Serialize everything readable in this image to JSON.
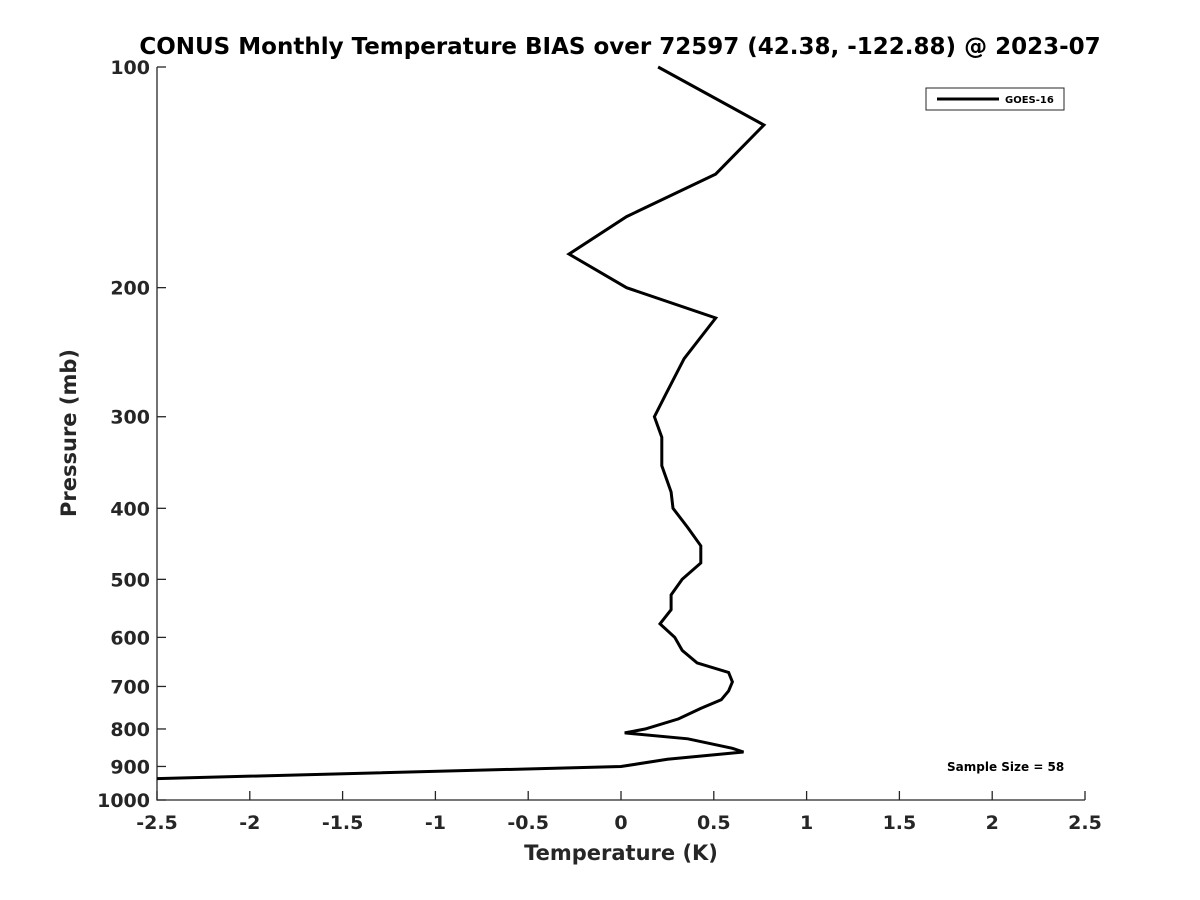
{
  "chart_data": {
    "type": "line",
    "title": "CONUS Monthly Temperature BIAS over 72597 (42.38, -122.88) @ 2023-07",
    "xlabel": "Temperature (K)",
    "ylabel": "Pressure (mb)",
    "xlim": [
      -2.5,
      2.5
    ],
    "ylim": [
      100,
      1000
    ],
    "yscale": "log",
    "yreversed": true,
    "grid": false,
    "legend_position": "top-right",
    "x_ticks": [
      -2.5,
      -2,
      -1.5,
      -1,
      -0.5,
      0,
      0.5,
      1,
      1.5,
      2,
      2.5
    ],
    "x_tick_labels": [
      "-2.5",
      "-2",
      "-1.5",
      "-1",
      "-0.5",
      "0",
      "0.5",
      "1",
      "1.5",
      "2",
      "2.5"
    ],
    "y_ticks": [
      100,
      200,
      300,
      400,
      500,
      600,
      700,
      800,
      900,
      1000
    ],
    "y_tick_labels": [
      "100",
      "200",
      "300",
      "400",
      "500",
      "600",
      "700",
      "800",
      "900",
      "1000"
    ],
    "annotation": "Sample Size = 58",
    "series": [
      {
        "name": "GOES-16",
        "color": "#000000",
        "points": [
          {
            "x": 0.2,
            "p": 100
          },
          {
            "x": 0.77,
            "p": 120
          },
          {
            "x": 0.51,
            "p": 140
          },
          {
            "x": 0.03,
            "p": 160
          },
          {
            "x": -0.28,
            "p": 180
          },
          {
            "x": 0.03,
            "p": 200
          },
          {
            "x": 0.51,
            "p": 220
          },
          {
            "x": 0.34,
            "p": 250
          },
          {
            "x": 0.24,
            "p": 280
          },
          {
            "x": 0.18,
            "p": 300
          },
          {
            "x": 0.22,
            "p": 320
          },
          {
            "x": 0.22,
            "p": 350
          },
          {
            "x": 0.27,
            "p": 380
          },
          {
            "x": 0.28,
            "p": 400
          },
          {
            "x": 0.36,
            "p": 425
          },
          {
            "x": 0.43,
            "p": 450
          },
          {
            "x": 0.43,
            "p": 475
          },
          {
            "x": 0.33,
            "p": 500
          },
          {
            "x": 0.27,
            "p": 525
          },
          {
            "x": 0.27,
            "p": 550
          },
          {
            "x": 0.21,
            "p": 575
          },
          {
            "x": 0.29,
            "p": 600
          },
          {
            "x": 0.33,
            "p": 625
          },
          {
            "x": 0.41,
            "p": 650
          },
          {
            "x": 0.58,
            "p": 670
          },
          {
            "x": 0.6,
            "p": 690
          },
          {
            "x": 0.58,
            "p": 710
          },
          {
            "x": 0.54,
            "p": 730
          },
          {
            "x": 0.43,
            "p": 750
          },
          {
            "x": 0.31,
            "p": 775
          },
          {
            "x": 0.13,
            "p": 800
          },
          {
            "x": 0.02,
            "p": 810
          },
          {
            "x": 0.36,
            "p": 825
          },
          {
            "x": 0.6,
            "p": 850
          },
          {
            "x": 0.66,
            "p": 860
          },
          {
            "x": 0.25,
            "p": 880
          },
          {
            "x": 0.0,
            "p": 900
          },
          {
            "x": -2.5,
            "p": 935
          }
        ]
      }
    ]
  }
}
